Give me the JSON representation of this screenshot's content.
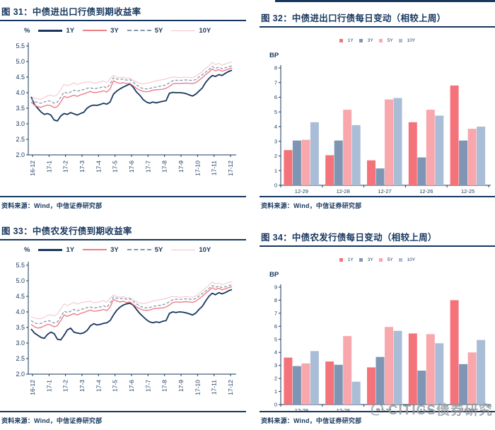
{
  "source_label": "资料来源：Wind，中信证券研究部",
  "watermark": {
    "text": "CITICS债券研究",
    "icon": "citics-swirl-logo"
  },
  "colors": {
    "accent_navy": "#17375e",
    "line_1y": "#17375e",
    "line_3y": "#ee7d87",
    "line_5y": "#8496b0",
    "line_10y": "#f2c3c7",
    "bar_1y": "#f4737a",
    "bar_3y": "#7e96b4",
    "bar_5y": "#f8a8ad",
    "bar_10y": "#aabdd6"
  },
  "chart_data": [
    {
      "id": "fig31",
      "type": "line",
      "title": "图 31：中债进出口行债到期收益率",
      "unit": "%",
      "ylim": [
        2.0,
        5.5
      ],
      "ytick_step": 0.5,
      "grid": false,
      "legend_position": "top",
      "x_labels": [
        "16-12",
        "17-1",
        "17-2",
        "17-3",
        "17-4",
        "17-5",
        "17-6",
        "17-7",
        "17-8",
        "17-9",
        "17-10",
        "17-11",
        "17-12"
      ],
      "series": [
        {
          "name": "1Y",
          "color": "#17375e",
          "style": "solid-thick",
          "values": [
            3.87,
            3.62,
            3.5,
            3.38,
            3.3,
            3.33,
            3.28,
            3.12,
            3.09,
            3.25,
            3.33,
            3.3,
            3.36,
            3.32,
            3.28,
            3.33,
            3.37,
            3.5,
            3.57,
            3.6,
            3.59,
            3.62,
            3.66,
            3.63,
            3.7,
            3.95,
            4.05,
            4.12,
            4.18,
            4.23,
            4.28,
            4.18,
            4.02,
            3.92,
            3.78,
            3.7,
            3.66,
            3.7,
            3.67,
            3.7,
            3.72,
            3.74,
            3.98,
            4.01,
            4.0,
            4.0,
            3.99,
            3.97,
            3.93,
            3.89,
            3.95,
            4.05,
            4.15,
            4.33,
            4.45,
            4.55,
            4.52,
            4.58,
            4.55,
            4.62,
            4.68,
            4.72
          ]
        },
        {
          "name": "3Y",
          "color": "#ee7d87",
          "style": "solid",
          "values": [
            3.7,
            3.6,
            3.55,
            3.53,
            3.57,
            3.6,
            3.58,
            3.52,
            3.55,
            3.7,
            3.88,
            3.84,
            3.88,
            3.92,
            3.88,
            3.93,
            3.96,
            4.0,
            4.04,
            4.0,
            4.01,
            4.03,
            4.06,
            4.02,
            4.12,
            4.38,
            4.33,
            4.3,
            4.32,
            4.29,
            4.3,
            4.22,
            4.14,
            4.08,
            4.04,
            4.03,
            4.04,
            4.08,
            4.09,
            4.1,
            4.11,
            4.14,
            4.2,
            4.28,
            4.3,
            4.29,
            4.3,
            4.31,
            4.3,
            4.29,
            4.32,
            4.4,
            4.48,
            4.58,
            4.66,
            4.76,
            4.7,
            4.74,
            4.69,
            4.72,
            4.76,
            4.79
          ]
        },
        {
          "name": "5Y",
          "color": "#8496b0",
          "style": "dashed",
          "values": [
            3.8,
            3.72,
            3.68,
            3.66,
            3.7,
            3.74,
            3.72,
            3.66,
            3.7,
            3.85,
            4.02,
            3.98,
            4.02,
            4.08,
            4.04,
            4.08,
            4.1,
            4.14,
            4.16,
            4.12,
            4.14,
            4.16,
            4.2,
            4.15,
            4.28,
            4.48,
            4.44,
            4.42,
            4.44,
            4.4,
            4.42,
            4.34,
            4.25,
            4.18,
            4.13,
            4.12,
            4.13,
            4.17,
            4.18,
            4.2,
            4.22,
            4.25,
            4.32,
            4.38,
            4.4,
            4.39,
            4.4,
            4.41,
            4.4,
            4.39,
            4.42,
            4.5,
            4.58,
            4.66,
            4.74,
            4.84,
            4.78,
            4.82,
            4.77,
            4.8,
            4.83,
            4.86
          ]
        },
        {
          "name": "10Y",
          "color": "#f2c3c7",
          "style": "thin",
          "values": [
            3.88,
            3.82,
            3.8,
            3.79,
            3.84,
            3.9,
            3.92,
            3.88,
            3.94,
            4.1,
            4.27,
            4.22,
            4.26,
            4.32,
            4.26,
            4.3,
            4.32,
            4.34,
            4.35,
            4.3,
            4.32,
            4.34,
            4.38,
            4.32,
            4.45,
            4.56,
            4.5,
            4.48,
            4.5,
            4.46,
            4.47,
            4.4,
            4.34,
            4.3,
            4.28,
            4.3,
            4.32,
            4.36,
            4.38,
            4.4,
            4.42,
            4.44,
            4.48,
            4.5,
            4.5,
            4.48,
            4.49,
            4.5,
            4.49,
            4.48,
            4.52,
            4.6,
            4.68,
            4.78,
            4.86,
            4.98,
            4.9,
            4.94,
            4.88,
            4.92,
            4.96,
            4.98
          ]
        }
      ]
    },
    {
      "id": "fig32",
      "type": "bar",
      "title": "图 32：中债进出口行债每日变动（相较上周）",
      "unit": "BP",
      "ymax": 8,
      "ytick_step": 1,
      "grid": false,
      "legend_position": "top-center",
      "categories": [
        "12-29",
        "12-28",
        "12-27",
        "12-26",
        "12-25"
      ],
      "series": [
        {
          "name": "1Y",
          "color": "#f4737a",
          "values": [
            2.4,
            2.05,
            1.7,
            4.3,
            6.8
          ]
        },
        {
          "name": "3Y",
          "color": "#7e96b4",
          "values": [
            3.05,
            3.05,
            1.15,
            1.9,
            3.05
          ]
        },
        {
          "name": "5Y",
          "color": "#f8a8ad",
          "values": [
            3.1,
            5.15,
            5.85,
            5.15,
            3.85
          ]
        },
        {
          "name": "10Y",
          "color": "#aabdd6",
          "values": [
            4.3,
            4.1,
            5.95,
            4.75,
            4.0
          ]
        }
      ]
    },
    {
      "id": "fig33",
      "type": "line",
      "title": "图 33：中债农发行债到期收益率",
      "unit": "%",
      "ylim": [
        2.0,
        5.5
      ],
      "ytick_step": 0.5,
      "grid": false,
      "legend_position": "top",
      "x_labels": [
        "16-12",
        "17-1",
        "17-2",
        "17-3",
        "17-4",
        "17-5",
        "17-6",
        "17-7",
        "17-8",
        "17-9",
        "17-10",
        "17-11",
        "17-12"
      ],
      "series": [
        {
          "name": "1Y",
          "color": "#17375e",
          "style": "solid-thick",
          "values": [
            3.45,
            3.32,
            3.25,
            3.18,
            3.15,
            3.28,
            3.35,
            3.3,
            3.12,
            3.1,
            3.25,
            3.42,
            3.48,
            3.35,
            3.32,
            3.3,
            3.33,
            3.4,
            3.55,
            3.62,
            3.58,
            3.6,
            3.63,
            3.65,
            3.72,
            3.9,
            4.05,
            4.15,
            4.22,
            4.26,
            4.28,
            4.22,
            4.08,
            3.95,
            3.85,
            3.75,
            3.68,
            3.65,
            3.68,
            3.66,
            3.7,
            3.72,
            3.95,
            4.0,
            3.98,
            4.0,
            3.99,
            3.97,
            3.94,
            3.9,
            3.96,
            4.08,
            4.18,
            4.35,
            4.5,
            4.6,
            4.55,
            4.62,
            4.58,
            4.62,
            4.68,
            4.72
          ]
        },
        {
          "name": "3Y",
          "color": "#ee7d87",
          "style": "solid",
          "values": [
            3.6,
            3.52,
            3.48,
            3.5,
            3.55,
            3.6,
            3.58,
            3.52,
            3.56,
            3.72,
            3.9,
            3.86,
            3.9,
            3.95,
            3.9,
            3.95,
            3.98,
            4.02,
            4.06,
            4.02,
            4.03,
            4.05,
            4.08,
            4.04,
            4.15,
            4.4,
            4.35,
            4.32,
            4.34,
            4.3,
            4.32,
            4.24,
            4.16,
            4.1,
            4.06,
            4.05,
            4.06,
            4.1,
            4.11,
            4.12,
            4.13,
            4.16,
            4.22,
            4.3,
            4.32,
            4.31,
            4.32,
            4.33,
            4.32,
            4.31,
            4.34,
            4.42,
            4.5,
            4.6,
            4.68,
            4.78,
            4.72,
            4.76,
            4.71,
            4.74,
            4.78,
            4.81
          ]
        },
        {
          "name": "5Y",
          "color": "#8496b0",
          "style": "dashed",
          "values": [
            3.72,
            3.65,
            3.62,
            3.63,
            3.68,
            3.72,
            3.7,
            3.64,
            3.68,
            3.84,
            4.02,
            3.98,
            4.02,
            4.08,
            4.03,
            4.08,
            4.1,
            4.14,
            4.16,
            4.12,
            4.14,
            4.16,
            4.2,
            4.15,
            4.28,
            4.48,
            4.44,
            4.42,
            4.44,
            4.4,
            4.42,
            4.34,
            4.26,
            4.19,
            4.14,
            4.13,
            4.14,
            4.18,
            4.19,
            4.21,
            4.23,
            4.26,
            4.33,
            4.39,
            4.41,
            4.4,
            4.41,
            4.42,
            4.41,
            4.4,
            4.43,
            4.51,
            4.59,
            4.67,
            4.75,
            4.85,
            4.79,
            4.83,
            4.78,
            4.81,
            4.84,
            4.87
          ]
        },
        {
          "name": "10Y",
          "color": "#f2c3c7",
          "style": "thin",
          "values": [
            3.85,
            3.8,
            3.78,
            3.78,
            3.83,
            3.89,
            3.91,
            3.87,
            3.93,
            4.09,
            4.26,
            4.21,
            4.25,
            4.31,
            4.25,
            4.29,
            4.31,
            4.33,
            4.34,
            4.29,
            4.31,
            4.33,
            4.37,
            4.31,
            4.44,
            4.55,
            4.49,
            4.47,
            4.49,
            4.45,
            4.46,
            4.39,
            4.33,
            4.29,
            4.27,
            4.29,
            4.31,
            4.35,
            4.37,
            4.39,
            4.41,
            4.43,
            4.47,
            4.49,
            4.49,
            4.47,
            4.48,
            4.49,
            4.48,
            4.47,
            4.51,
            4.59,
            4.67,
            4.77,
            4.85,
            4.97,
            4.89,
            4.93,
            4.87,
            4.91,
            4.95,
            4.97
          ]
        }
      ]
    },
    {
      "id": "fig34",
      "type": "bar",
      "title": "图 34：中债农发行债每日变动（相较上周）",
      "unit": "BP",
      "ymax": 9,
      "ytick_step": 1,
      "grid": false,
      "legend_position": "top-center",
      "categories": [
        "12-29",
        "12-28",
        "12-27",
        "12-26",
        "12-25"
      ],
      "series": [
        {
          "name": "1Y",
          "color": "#f4737a",
          "values": [
            3.6,
            3.3,
            2.85,
            5.45,
            8.0
          ]
        },
        {
          "name": "3Y",
          "color": "#7e96b4",
          "values": [
            2.95,
            3.05,
            3.65,
            2.6,
            3.1
          ]
        },
        {
          "name": "5Y",
          "color": "#f8a8ad",
          "values": [
            3.15,
            5.25,
            5.95,
            5.4,
            4.0
          ]
        },
        {
          "name": "10Y",
          "color": "#aabdd6",
          "values": [
            4.1,
            1.75,
            5.65,
            4.7,
            4.95
          ]
        }
      ]
    }
  ]
}
